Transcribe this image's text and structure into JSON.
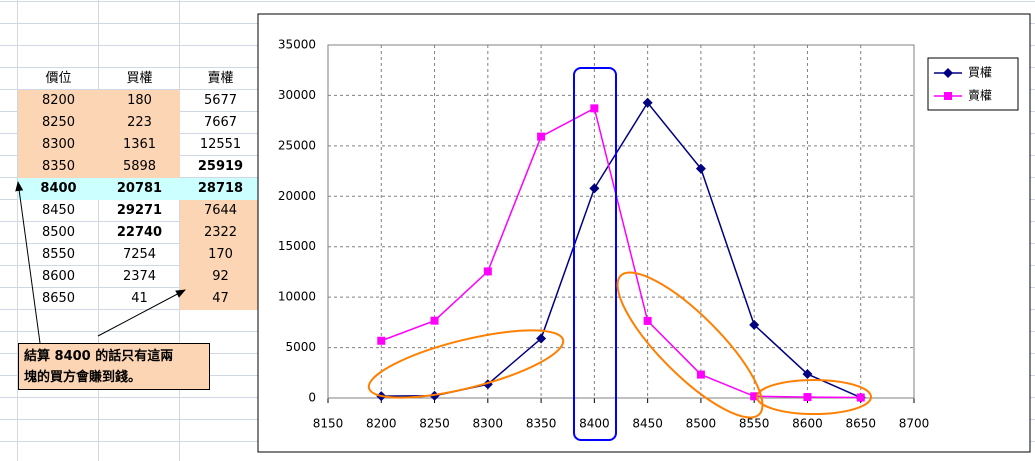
{
  "table": {
    "header": [
      "價位",
      "買權",
      "賣權"
    ],
    "rows": [
      [
        8200,
        180,
        5677
      ],
      [
        8250,
        223,
        7667
      ],
      [
        8300,
        1361,
        12551
      ],
      [
        8350,
        5898,
        25919
      ],
      [
        8400,
        20781,
        28718
      ],
      [
        8450,
        29271,
        7644
      ],
      [
        8500,
        22740,
        2322
      ],
      [
        8550,
        7254,
        170
      ],
      [
        8600,
        2374,
        92
      ],
      [
        8650,
        41,
        47
      ]
    ]
  },
  "note": [
    "結算 8400 的話只有這兩",
    "塊的買方會賺到錢。"
  ],
  "chart_data": {
    "type": "line",
    "x": [
      8200,
      8250,
      8300,
      8350,
      8400,
      8450,
      8500,
      8550,
      8600,
      8650
    ],
    "series": [
      {
        "name": "買權",
        "color": "#000080",
        "marker": "diamond",
        "values": [
          180,
          223,
          1361,
          5898,
          20781,
          29271,
          22740,
          7254,
          2374,
          41
        ]
      },
      {
        "name": "賣權",
        "color": "#ff00ff",
        "marker": "square",
        "values": [
          5677,
          7667,
          12551,
          25919,
          28718,
          7644,
          2322,
          170,
          92,
          47
        ]
      }
    ],
    "xlim": [
      8150,
      8700
    ],
    "xticks": [
      8150,
      8200,
      8250,
      8300,
      8350,
      8400,
      8450,
      8500,
      8550,
      8600,
      8650,
      8700
    ],
    "ylim": [
      0,
      35000
    ],
    "yticks": [
      0,
      5000,
      10000,
      15000,
      20000,
      25000,
      30000,
      35000
    ],
    "grid": true,
    "legend": "right"
  }
}
